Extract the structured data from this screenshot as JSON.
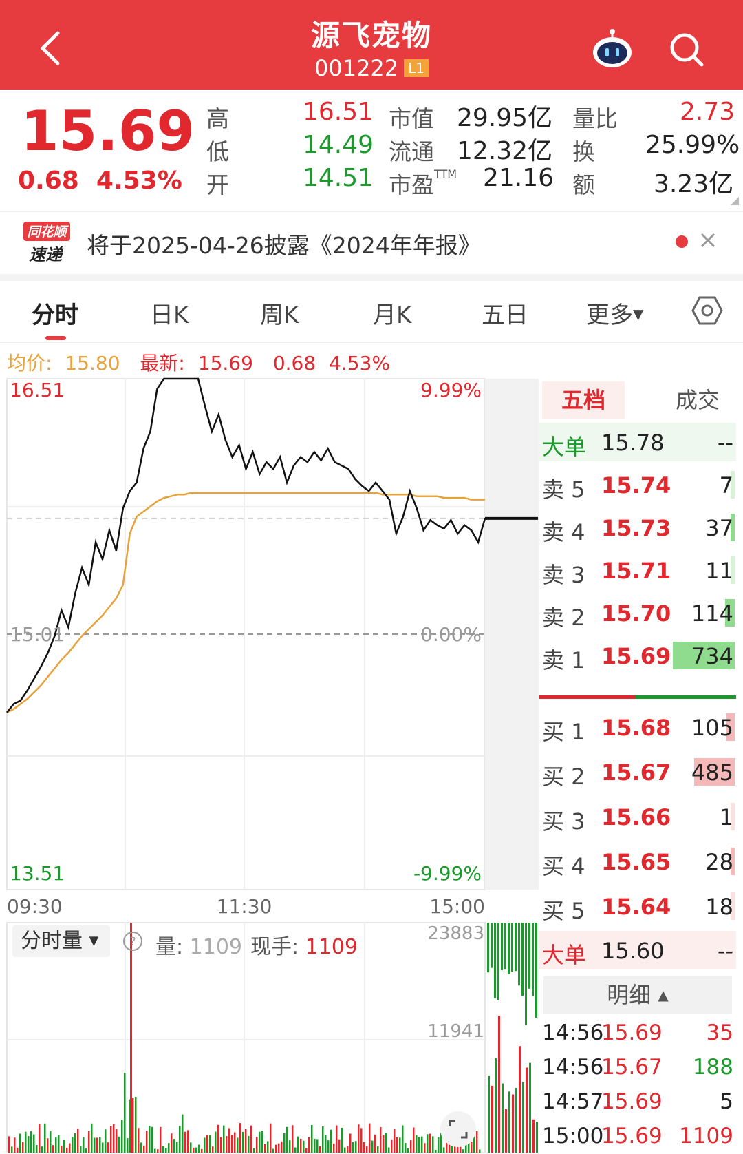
{
  "header": {
    "title": "源飞宠物",
    "code": "001222",
    "level_badge": "L1"
  },
  "quote": {
    "price": "15.69",
    "change": "0.68",
    "change_pct": "4.53%",
    "cols": [
      {
        "label": "高",
        "value": "16.51",
        "color": "red"
      },
      {
        "label": "低",
        "value": "14.49",
        "color": "green"
      },
      {
        "label": "开",
        "value": "14.51",
        "color": "green"
      }
    ],
    "cols2": [
      {
        "label": "市值",
        "value": "29.95亿"
      },
      {
        "label": "流通",
        "value": "12.32亿"
      },
      {
        "label": "市盈",
        "sup": "TTM",
        "value": "21.16"
      }
    ],
    "cols3": [
      {
        "label": "量比",
        "value": "2.73",
        "color": "red"
      },
      {
        "label": "换",
        "value": "25.99%"
      },
      {
        "label": "额",
        "value": "3.23亿"
      }
    ]
  },
  "notice": {
    "logo_top": "同花顺",
    "logo_bottom": "速递",
    "text": "将于2025-04-26披露《2024年年报》"
  },
  "tabs": [
    "分时",
    "日K",
    "周K",
    "月K",
    "五日",
    "更多"
  ],
  "summary": {
    "avg_label": "均价:",
    "avg_value": "15.80",
    "last_label": "最新:",
    "last_value": "15.69",
    "change": "0.68",
    "change_pct": "4.53%"
  },
  "chart_data": {
    "type": "line",
    "title": "",
    "y_left_ticks": [
      "16.51",
      "15.01",
      "13.51"
    ],
    "y_right_ticks": [
      "9.99%",
      "0.00%",
      "-9.99%"
    ],
    "ylim": [
      13.51,
      16.51
    ],
    "x_ticks": [
      "09:30",
      "11:30",
      "15:00"
    ],
    "series": [
      {
        "values": [
          14.55,
          14.6,
          14.62,
          14.68,
          14.75,
          14.82,
          14.9,
          15.0,
          15.15,
          15.05,
          15.25,
          15.4,
          15.3,
          15.55,
          15.45,
          15.62,
          15.5,
          15.75,
          15.85,
          15.9,
          16.1,
          16.2,
          16.45,
          16.51,
          16.51,
          16.51,
          16.51,
          16.51,
          16.51,
          16.35,
          16.2,
          16.3,
          16.15,
          16.05,
          16.12,
          15.98,
          16.08,
          15.95,
          16.02,
          15.98,
          16.05,
          15.9,
          16.0,
          16.05,
          16.02,
          16.08,
          16.03,
          16.1,
          16.02,
          16.0,
          15.98,
          15.92,
          15.88,
          15.85,
          15.9,
          15.85,
          15.8,
          15.6,
          15.7,
          15.85,
          15.75,
          15.62,
          15.68,
          15.65,
          15.63,
          15.68,
          15.6,
          15.65,
          15.62,
          15.55,
          15.69
        ]
      },
      {
        "values": [
          14.55,
          14.57,
          14.6,
          14.63,
          14.67,
          14.71,
          14.76,
          14.81,
          14.86,
          14.9,
          14.95,
          15.0,
          15.04,
          15.08,
          15.12,
          15.17,
          15.22,
          15.3,
          15.6,
          15.7,
          15.73,
          15.76,
          15.79,
          15.81,
          15.82,
          15.83,
          15.83,
          15.84,
          15.84,
          15.84,
          15.84,
          15.84,
          15.84,
          15.84,
          15.84,
          15.84,
          15.84,
          15.84,
          15.84,
          15.84,
          15.84,
          15.84,
          15.84,
          15.84,
          15.84,
          15.84,
          15.84,
          15.84,
          15.84,
          15.84,
          15.84,
          15.84,
          15.84,
          15.84,
          15.84,
          15.83,
          15.83,
          15.83,
          15.83,
          15.83,
          15.82,
          15.82,
          15.82,
          15.82,
          15.81,
          15.81,
          15.81,
          15.81,
          15.8,
          15.8,
          15.8
        ]
      }
    ],
    "volume_ticks": [
      "23883",
      "11941"
    ],
    "volume_max": 23883,
    "colors": {
      "price_line": "#111111",
      "avg_line": "#e8a23a",
      "up": "#e0282e",
      "down": "#1a9a2a"
    }
  },
  "orderbook": {
    "tab_active": "五档",
    "tab_other": "成交",
    "big_sell": {
      "label": "大单",
      "price": "15.78",
      "vol": "--"
    },
    "sells": [
      {
        "label": "卖 5",
        "price": "15.74",
        "vol": "7"
      },
      {
        "label": "卖 4",
        "price": "15.73",
        "vol": "37"
      },
      {
        "label": "卖 3",
        "price": "15.71",
        "vol": "11"
      },
      {
        "label": "卖 2",
        "price": "15.70",
        "vol": "114"
      },
      {
        "label": "卖 1",
        "price": "15.69",
        "vol": "734"
      }
    ],
    "buys": [
      {
        "label": "买 1",
        "price": "15.68",
        "vol": "105"
      },
      {
        "label": "买 2",
        "price": "15.67",
        "vol": "485"
      },
      {
        "label": "买 3",
        "price": "15.66",
        "vol": "1"
      },
      {
        "label": "买 4",
        "price": "15.65",
        "vol": "28"
      },
      {
        "label": "买 5",
        "price": "15.64",
        "vol": "18"
      }
    ],
    "big_buy": {
      "label": "大单",
      "price": "15.60",
      "vol": "--"
    },
    "detail_label": "明细",
    "trades": [
      {
        "time": "14:56",
        "price": "15.69",
        "vol": "35",
        "color": "red"
      },
      {
        "time": "14:56",
        "price": "15.67",
        "vol": "188",
        "color": "green"
      },
      {
        "time": "14:57",
        "price": "15.69",
        "vol": "5",
        "color": "dark"
      },
      {
        "time": "15:00",
        "price": "15.69",
        "vol": "1109",
        "color": "red"
      }
    ]
  },
  "volume_panel": {
    "select_label": "分时量",
    "vol_label": "量:",
    "vol_value": "1109",
    "hand_label": "现手:",
    "hand_value": "1109"
  }
}
